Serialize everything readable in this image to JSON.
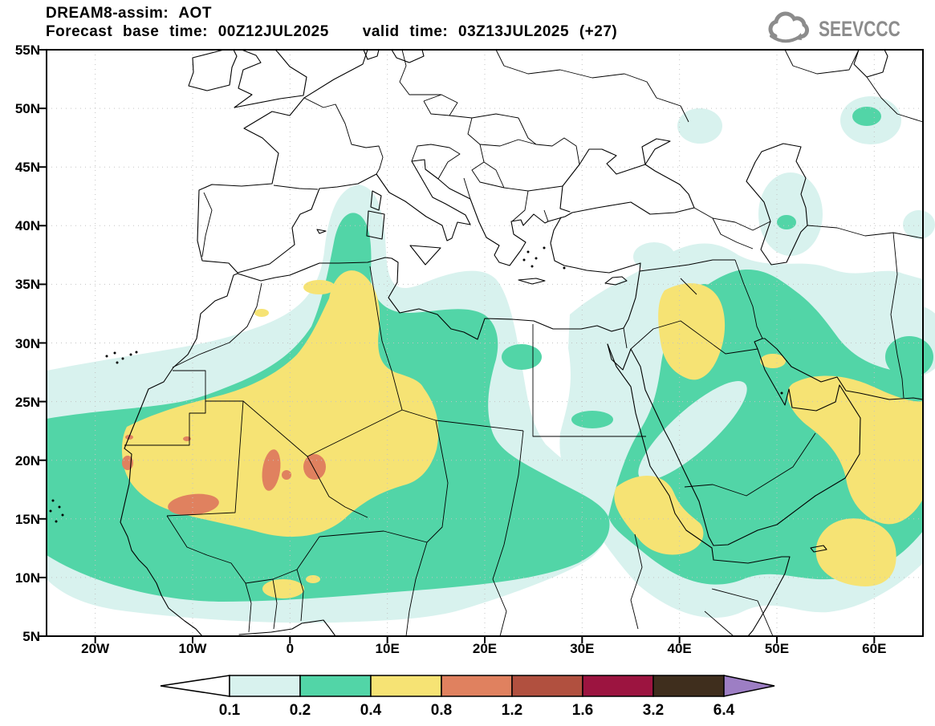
{
  "header": {
    "title": "DREAM8-assim: AOT",
    "forecast_text": "Forecast base time: 00Z12JUL2025",
    "valid_text": "valid time: 03Z13JUL2025 (+27)"
  },
  "logo": {
    "text": "SEEVCCC",
    "icon": "cloud-icon",
    "color": "#8c8c8c"
  },
  "map": {
    "lat_labels": [
      "55N",
      "50N",
      "45N",
      "40N",
      "35N",
      "30N",
      "25N",
      "20N",
      "15N",
      "10N",
      "5N"
    ],
    "lon_labels": [
      "20W",
      "10W",
      "0",
      "10E",
      "20E",
      "30E",
      "40E",
      "50E",
      "60E"
    ]
  },
  "colorbar": {
    "tick_labels": [
      "0.1",
      "0.2",
      "0.4",
      "0.8",
      "1.2",
      "1.6",
      "3.2",
      "6.4"
    ],
    "segment_colors": [
      "#d8f2ee",
      "#52d5a7",
      "#f6e374",
      "#e0815f",
      "#b1503f",
      "#9c1440",
      "#3f2e1d"
    ],
    "left_arrow_color": "#ffffff",
    "right_arrow_color": "#9d7ec4",
    "outline_color": "#000000"
  },
  "chart_data": {
    "type": "heatmap",
    "subtype": "filled-contour-geographic-map",
    "title": "DREAM8-assim: AOT",
    "model": "DREAM8-assim",
    "variable": "AOT (aerosol optical thickness)",
    "forecast_base_time": "00Z12JUL2025",
    "valid_time": "03Z13JUL2025 (+27)",
    "lon_range_deg": [
      -25,
      65
    ],
    "lat_range_deg": [
      5,
      55
    ],
    "lat_ticks": [
      "55N",
      "50N",
      "45N",
      "40N",
      "35N",
      "30N",
      "25N",
      "20N",
      "15N",
      "10N",
      "5N"
    ],
    "lon_ticks": [
      "20W",
      "10W",
      "0",
      "10E",
      "20E",
      "30E",
      "40E",
      "50E",
      "60E"
    ],
    "grid": "dotted, 5-deg latitude / 10-deg longitude",
    "legend_position": "bottom",
    "contour_levels": [
      0.1,
      0.2,
      0.4,
      0.8,
      1.2,
      1.6,
      3.2,
      6.4
    ],
    "palette": [
      {
        "range": "< 0.1",
        "color": "#ffffff"
      },
      {
        "range": "0.1 - 0.2",
        "color": "#d8f2ee"
      },
      {
        "range": "0.2 - 0.4",
        "color": "#52d5a7"
      },
      {
        "range": "0.4 - 0.8",
        "color": "#f6e374"
      },
      {
        "range": "0.8 - 1.2",
        "color": "#e0815f"
      },
      {
        "range": "1.2 - 1.6",
        "color": "#b1503f"
      },
      {
        "range": "1.6 - 3.2",
        "color": "#9c1440"
      },
      {
        "range": "3.2 - 6.4",
        "color": "#3f2e1d"
      },
      {
        "range": "> 6.4",
        "color": "#9d7ec4"
      }
    ],
    "notable_features": [
      {
        "region": "Sahel/West Africa (Mauritania, Mali, Niger ~14-23N, 17W-13E)",
        "aot": "0.4-0.8 broad plume"
      },
      {
        "region": "S Mauritania / Mali cores (~16N 10W, ~18-20N 2W-3E)",
        "aot": "0.8-1.2 maxima"
      },
      {
        "region": "Central Algeria arm up to ~35N, 0-8E",
        "aot": "0.4-0.8"
      },
      {
        "region": "Western Mediterranean plume toward Sardinia (~38-43N, 7-10E)",
        "aot": "0.1-0.4"
      },
      {
        "region": "Iraq / N Saudi Arabia (~30-36N, 38-45E)",
        "aot": "0.4-0.8"
      },
      {
        "region": "Persian Gulf, UAE, Oman coast to 65E (~21-28N)",
        "aot": "0.4-0.8"
      },
      {
        "region": "Sudan / Eritrea / Red Sea (~13-19N, 33-40E)",
        "aot": "0.4-0.8"
      },
      {
        "region": "Arabian Sea near Socotra (~12-16N, 52-58E)",
        "aot": "0.4-0.8"
      },
      {
        "region": "Arabia / Horn of Africa background",
        "aot": "0.2-0.4"
      },
      {
        "region": "Europe, Atlantic N of 25N, NE corners",
        "aot": "< 0.1 mostly clear"
      }
    ]
  }
}
